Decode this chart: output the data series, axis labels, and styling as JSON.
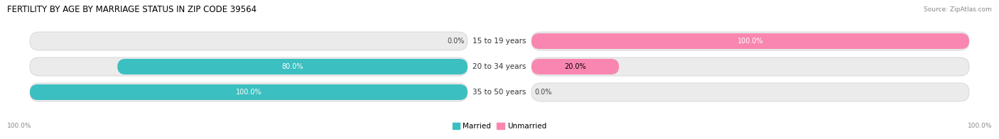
{
  "title": "FERTILITY BY AGE BY MARRIAGE STATUS IN ZIP CODE 39564",
  "source": "Source: ZipAtlas.com",
  "categories": [
    "15 to 19 years",
    "20 to 34 years",
    "35 to 50 years"
  ],
  "married": [
    0.0,
    80.0,
    100.0
  ],
  "unmarried": [
    100.0,
    20.0,
    0.0
  ],
  "color_married": "#3bbfc0",
  "color_unmarried": "#f986b0",
  "bg_color": "#ebebeb",
  "bg_border": "#d8d8d8",
  "title_fontsize": 8.5,
  "source_fontsize": 6.5,
  "label_fontsize": 7.0,
  "cat_fontsize": 7.5,
  "legend_fontsize": 7.5,
  "bottom_left": "100.0%",
  "bottom_right": "100.0%",
  "label_color_white": [
    "80.0%",
    "100.0%",
    "100.0%"
  ],
  "text_color": "#555555"
}
